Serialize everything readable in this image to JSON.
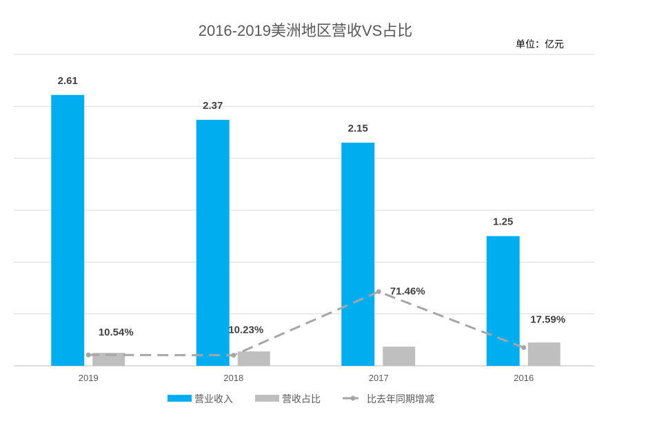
{
  "chart_data": {
    "type": "bar",
    "title": "2016-2019美洲地区营收VS占比",
    "unit_label": "单位：亿元",
    "categories": [
      "2019",
      "2018",
      "2017",
      "2016"
    ],
    "ylim": [
      0,
      3
    ],
    "y_grid_step": 0.5,
    "grid": true,
    "y_tick_labels_visible": false,
    "secondary_ylim": [
      0,
      300
    ],
    "legend_position": "bottom",
    "series": [
      {
        "name": "营业收入",
        "type": "bar",
        "axis": "primary",
        "color": "#00AEEF",
        "values": [
          2.61,
          2.37,
          2.15,
          1.25
        ],
        "labels": [
          "2.61",
          "2.37",
          "2.15",
          "1.25"
        ]
      },
      {
        "name": "营收占比",
        "type": "bar",
        "axis": "secondary",
        "color": "#BFBFBF",
        "values": [
          12.6,
          13.9,
          18.5,
          22.5
        ],
        "labels": []
      },
      {
        "name": "比去年同期增减",
        "type": "line",
        "style": "dashed",
        "axis": "secondary",
        "color": "#A6A6A6",
        "values": [
          10.54,
          10.23,
          71.46,
          17.59
        ],
        "labels": [
          "10.54%",
          "10.23%",
          "71.46%",
          "17.59%"
        ]
      }
    ]
  }
}
